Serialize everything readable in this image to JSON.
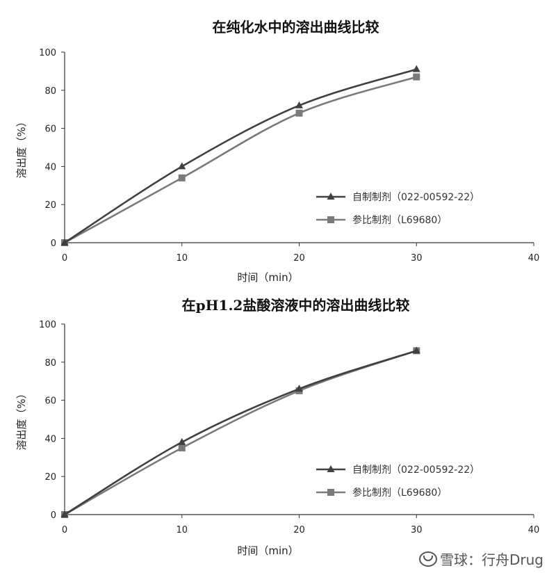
{
  "chart_data": [
    {
      "type": "line",
      "title": "在纯化水中的溶出曲线比较",
      "xlabel": "时间（min）",
      "ylabel": "溶出度（%）",
      "xlim": [
        0,
        40
      ],
      "ylim": [
        0,
        100
      ],
      "xticks": [
        0,
        10,
        20,
        30,
        40
      ],
      "yticks": [
        0,
        20,
        40,
        60,
        80,
        100
      ],
      "grid": false,
      "legend_position": "lower-right",
      "series": [
        {
          "name": "自制制剂（022-00592-22）",
          "marker": "triangle",
          "color": "#404040",
          "x": [
            0,
            10,
            20,
            30
          ],
          "y": [
            0,
            40,
            72,
            91
          ]
        },
        {
          "name": "参比制剂（L69680）",
          "marker": "square",
          "color": "#7a7a7a",
          "x": [
            0,
            10,
            20,
            30
          ],
          "y": [
            0,
            34,
            68,
            87
          ]
        }
      ]
    },
    {
      "type": "line",
      "title": "在pH1.2盐酸溶液中的溶出曲线比较",
      "xlabel": "时间（min）",
      "ylabel": "溶出度（%）",
      "xlim": [
        0,
        40
      ],
      "ylim": [
        0,
        100
      ],
      "xticks": [
        0,
        10,
        20,
        30,
        40
      ],
      "yticks": [
        0,
        20,
        40,
        60,
        80,
        100
      ],
      "grid": false,
      "legend_position": "lower-right",
      "series": [
        {
          "name": "自制制剂（022-00592-22）",
          "marker": "triangle",
          "color": "#404040",
          "x": [
            0,
            10,
            20,
            30
          ],
          "y": [
            0,
            38,
            66,
            86
          ]
        },
        {
          "name": "参比制剂（L69680）",
          "marker": "square",
          "color": "#7a7a7a",
          "x": [
            0,
            10,
            20,
            30
          ],
          "y": [
            0,
            35,
            65,
            86
          ]
        }
      ]
    }
  ],
  "watermark": {
    "text": "雪球：行舟Drug",
    "icon": "snowball-logo-icon"
  }
}
